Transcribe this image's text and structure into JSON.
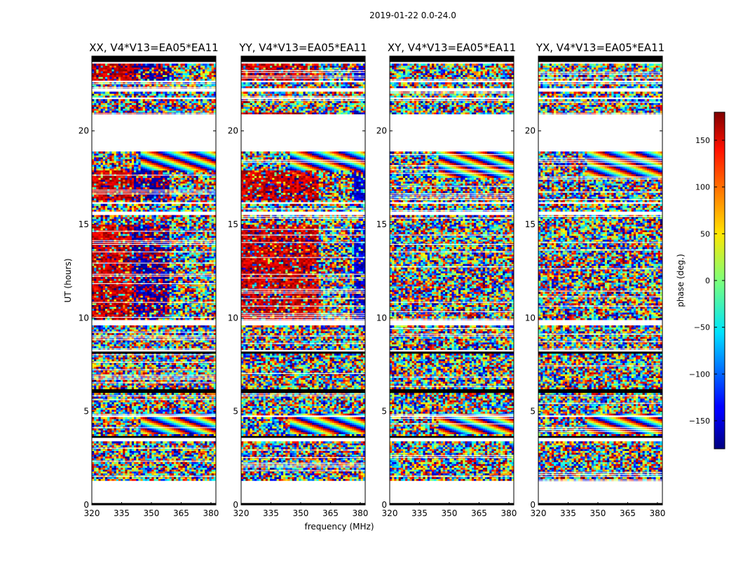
{
  "suptitle": "2019-01-22 0.0-24.0",
  "chart_data": {
    "type": "heatmap",
    "colormap": "jet",
    "xlabel": "frequency (MHz)",
    "ylabel": "UT (hours)",
    "xlim": [
      320,
      382.5
    ],
    "ylim": [
      0,
      24
    ],
    "xticks": [
      320,
      335,
      350,
      365,
      380
    ],
    "xtick_labels": [
      "320",
      "335",
      "350",
      "365",
      "380"
    ],
    "yticks": [
      0,
      5,
      10,
      15,
      20
    ],
    "ytick_labels": [
      "0",
      "5",
      "10",
      "15",
      "20"
    ],
    "colorbar": {
      "label": "phase (deg.)",
      "range": [
        -180,
        180
      ],
      "ticks": [
        150,
        100,
        50,
        0,
        -50,
        -100,
        -150
      ],
      "tick_labels": [
        "150",
        "100",
        "50",
        "0",
        "−50",
        "−100",
        "−150"
      ]
    },
    "panels": [
      {
        "title": "XX, V4*V13=EA05*EA11",
        "coherent_phase_low_band": 155,
        "coherent_phase_high_band": -165
      },
      {
        "title": "YY, V4*V13=EA05*EA11",
        "coherent_phase_low_band": 155,
        "coherent_phase_high_band": -150
      },
      {
        "title": "XY, V4*V13=EA05*EA11",
        "coherent_phase_low_band": null,
        "coherent_phase_high_band": null
      },
      {
        "title": "YX, V4*V13=EA05*EA11",
        "coherent_phase_low_band": null,
        "coherent_phase_high_band": null
      }
    ],
    "data_gaps_hours": [
      [
        0.1,
        1.3
      ],
      [
        3.4,
        3.65
      ],
      [
        4.75,
        4.85
      ],
      [
        8.2,
        8.3
      ],
      [
        9.6,
        9.9
      ],
      [
        15.5,
        15.7
      ],
      [
        16.1,
        16.2
      ],
      [
        18.9,
        20.9
      ],
      [
        21.7,
        21.8
      ],
      [
        22.1,
        22.3
      ],
      [
        22.6,
        22.75
      ],
      [
        23.6,
        23.7
      ]
    ],
    "flagged_hours": [
      [
        0.0,
        0.1
      ],
      [
        3.5,
        3.7
      ],
      [
        6.05,
        6.25
      ],
      [
        8.1,
        8.2
      ],
      [
        23.7,
        24.0
      ]
    ]
  }
}
